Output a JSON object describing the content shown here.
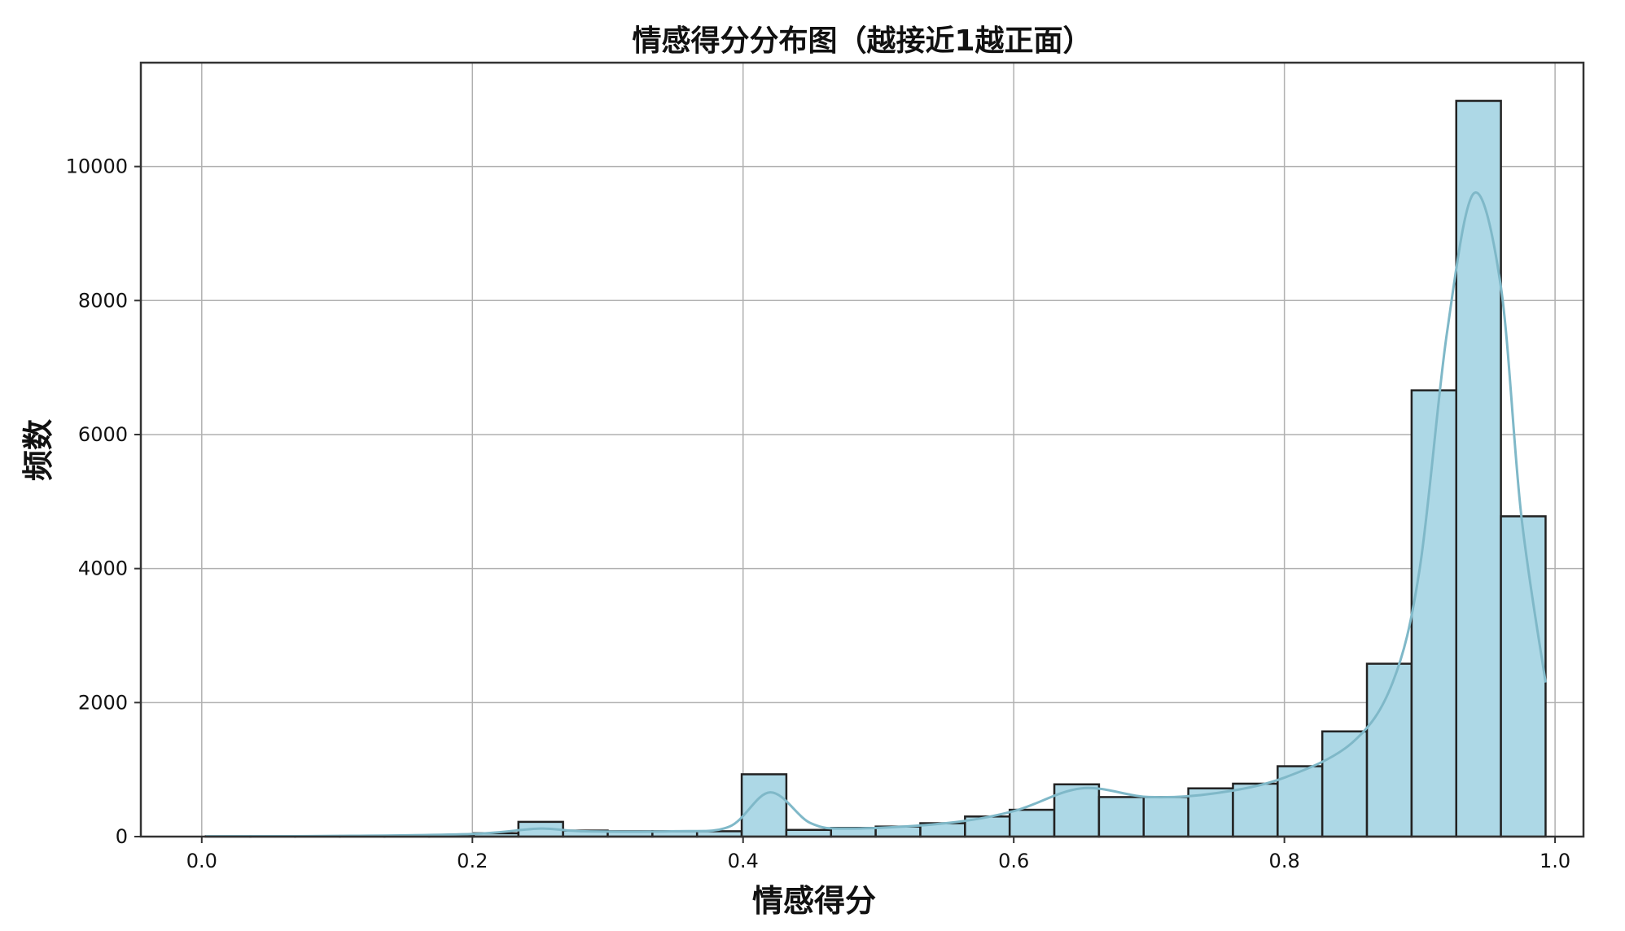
{
  "chart_data": {
    "type": "bar",
    "title": "情感得分分布图（越接近1越正面）",
    "xlabel": "情感得分",
    "ylabel": "频数",
    "xlim": [
      -0.045,
      1.021
    ],
    "ylim": [
      0,
      11550
    ],
    "xticks": [
      "0.0",
      "0.2",
      "0.4",
      "0.6",
      "0.8",
      "1.0"
    ],
    "yticks": [
      "0",
      "2000",
      "4000",
      "6000",
      "8000",
      "10000"
    ],
    "grid": true,
    "bin_start": 0.003,
    "bin_width": 0.033,
    "values": [
      5,
      5,
      5,
      10,
      10,
      20,
      50,
      220,
      90,
      80,
      80,
      80,
      930,
      100,
      130,
      150,
      200,
      300,
      400,
      780,
      590,
      590,
      720,
      790,
      1050,
      1570,
      2580,
      6660,
      10980,
      4780
    ],
    "kde": [
      [
        0.003,
        5
      ],
      [
        0.1,
        10
      ],
      [
        0.2,
        40
      ],
      [
        0.25,
        120
      ],
      [
        0.28,
        80
      ],
      [
        0.35,
        80
      ],
      [
        0.39,
        150
      ],
      [
        0.42,
        660
      ],
      [
        0.45,
        200
      ],
      [
        0.48,
        120
      ],
      [
        0.55,
        200
      ],
      [
        0.6,
        380
      ],
      [
        0.65,
        720
      ],
      [
        0.7,
        590
      ],
      [
        0.75,
        650
      ],
      [
        0.8,
        880
      ],
      [
        0.85,
        1400
      ],
      [
        0.88,
        2300
      ],
      [
        0.9,
        4000
      ],
      [
        0.92,
        7500
      ],
      [
        0.94,
        9600
      ],
      [
        0.96,
        8200
      ],
      [
        0.975,
        4800
      ],
      [
        0.993,
        2300
      ]
    ],
    "colors": {
      "bar": "#add8e6",
      "edge": "#222222",
      "kde": "#7fb8c8",
      "grid": "#b0b0b0"
    }
  }
}
